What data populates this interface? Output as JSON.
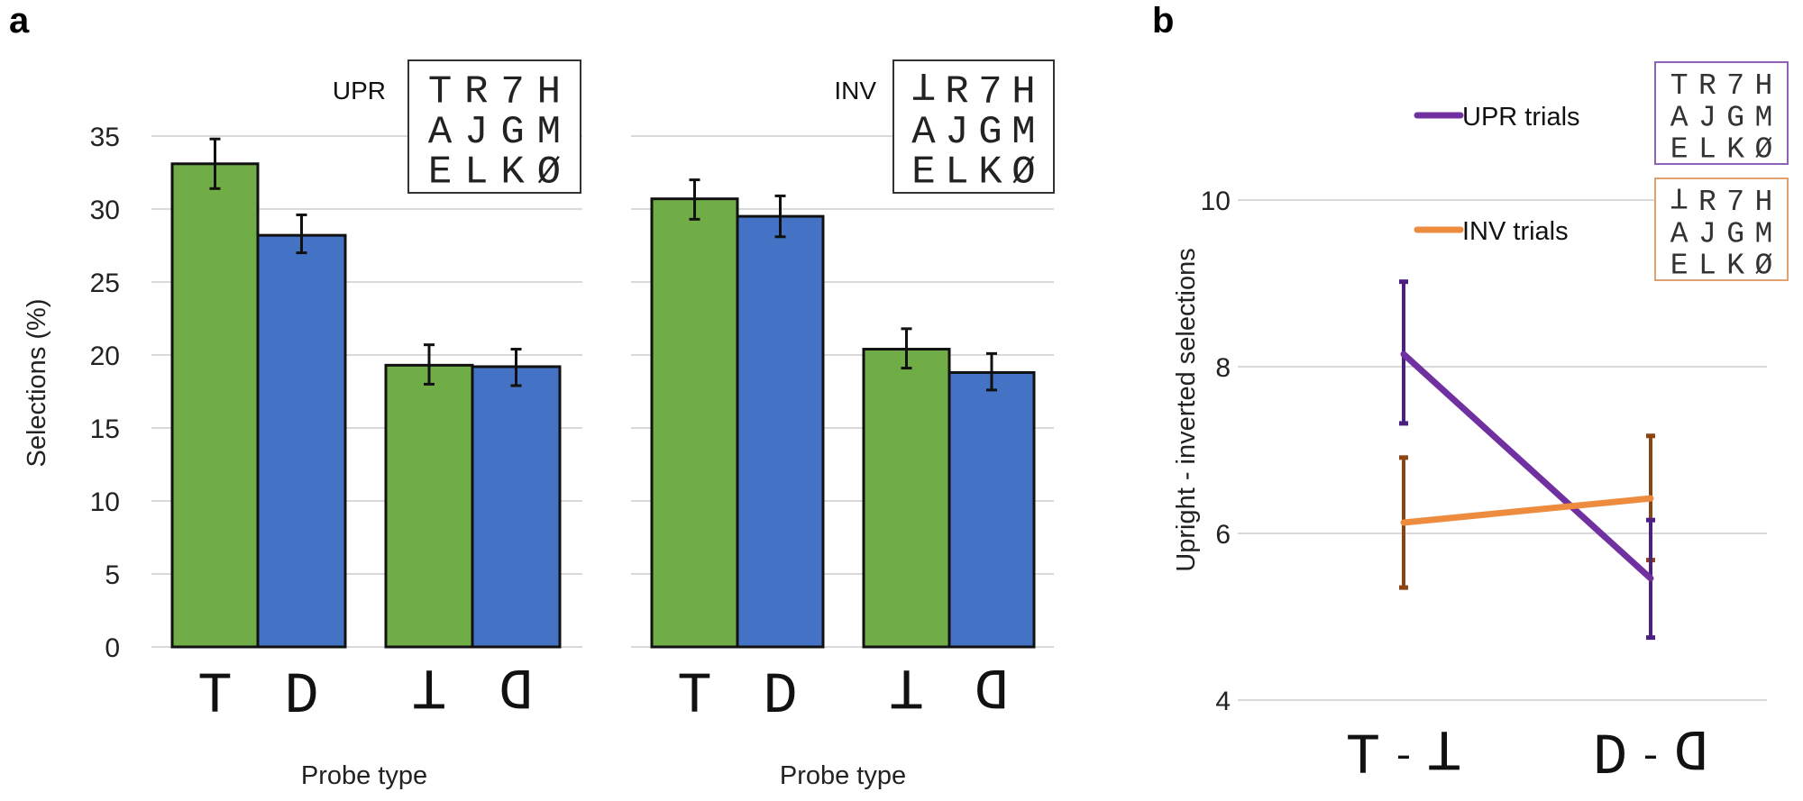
{
  "chart_data": [
    {
      "panel": "a",
      "type": "bar",
      "condition": "UPR",
      "stimulus_grid": {
        "rows": [
          "TR7H",
          "AJGM",
          "ELKØ"
        ],
        "first_char_inverted": false
      },
      "categories": [
        "T",
        "D",
        "T (inverted)",
        "D (inverted)"
      ],
      "category_glyphs": [
        "T",
        "D",
        "T",
        "D"
      ],
      "category_inverted": [
        false,
        false,
        true,
        true
      ],
      "colors": [
        "#70ad47",
        "#4472c4",
        "#70ad47",
        "#4472c4"
      ],
      "values": [
        33.1,
        28.2,
        19.3,
        19.2
      ],
      "error_low": [
        31.4,
        27.0,
        18.0,
        17.9
      ],
      "error_high": [
        34.8,
        29.6,
        20.7,
        20.4
      ],
      "ylabel": "Selections (%)",
      "xlabel": "Probe type",
      "ylim": [
        0,
        35
      ],
      "yticks": [
        0,
        5,
        10,
        15,
        20,
        25,
        30,
        35
      ],
      "grid": true
    },
    {
      "panel": "a",
      "type": "bar",
      "condition": "INV",
      "stimulus_grid": {
        "rows": [
          "TR7H",
          "AJGM",
          "ELKØ"
        ],
        "first_char_inverted": true
      },
      "categories": [
        "T",
        "D",
        "T (inverted)",
        "D (inverted)"
      ],
      "category_glyphs": [
        "T",
        "D",
        "T",
        "D"
      ],
      "category_inverted": [
        false,
        false,
        true,
        true
      ],
      "colors": [
        "#70ad47",
        "#4472c4",
        "#70ad47",
        "#4472c4"
      ],
      "values": [
        30.7,
        29.5,
        20.4,
        18.8
      ],
      "error_low": [
        29.3,
        28.1,
        19.1,
        17.6
      ],
      "error_high": [
        32.0,
        30.9,
        21.8,
        20.1
      ],
      "xlabel": "Probe type",
      "ylim": [
        0,
        35
      ],
      "yticks": [
        0,
        5,
        10,
        15,
        20,
        25,
        30,
        35
      ],
      "grid": true
    },
    {
      "panel": "b",
      "type": "line",
      "categories": [
        "T - T(inverted)",
        "D - D(inverted)"
      ],
      "category_pairs": [
        [
          "T",
          "T"
        ],
        [
          "D",
          "D"
        ]
      ],
      "ylabel": "Upright - inverted selections",
      "ylim": [
        4,
        10
      ],
      "yticks": [
        4,
        6,
        8,
        10
      ],
      "grid": true,
      "legend_position": "top-right",
      "series": [
        {
          "name": "UPR trials",
          "color": "#7030a0",
          "error_color": "#4b2080",
          "values": [
            8.15,
            5.46
          ],
          "error_low": [
            7.32,
            4.75
          ],
          "error_high": [
            9.02,
            6.16
          ],
          "stimulus_grid": {
            "rows": [
              "TR7H",
              "AJGM",
              "ELKØ"
            ],
            "first_char_inverted": false
          }
        },
        {
          "name": "INV trials",
          "color": "#ed8b3f",
          "error_color": "#8b4513",
          "values": [
            6.13,
            6.42
          ],
          "error_low": [
            5.35,
            5.68
          ],
          "error_high": [
            6.91,
            7.17
          ],
          "stimulus_grid": {
            "rows": [
              "TR7H",
              "AJGM",
              "ELKØ"
            ],
            "first_char_inverted": true
          }
        }
      ]
    }
  ],
  "labels": {
    "panel_a": "a",
    "panel_b": "b",
    "upr": "UPR",
    "inv": "INV",
    "probe_type": "Probe type",
    "selections": "Selections (%)",
    "diff_ylabel": "Upright - inverted selections",
    "legend_upr": "UPR trials",
    "legend_inv": "INV trials",
    "dash": "-"
  }
}
